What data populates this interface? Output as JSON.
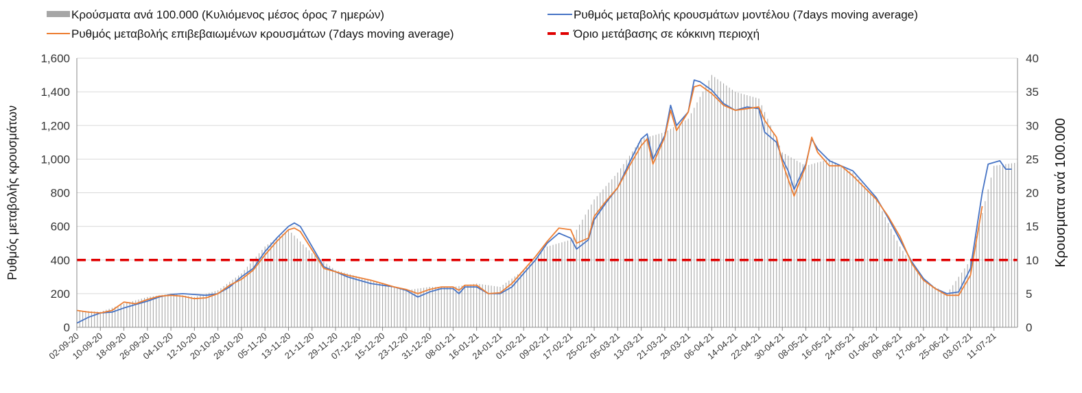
{
  "colors": {
    "bars": "#a6a6a6",
    "model": "#4472c4",
    "confirmed": "#ed7d31",
    "threshold": "#e00000",
    "grid": "#d9d9d9"
  },
  "legend": {
    "bars": "Κρούσματα ανά 100.000 (Κυλιόμενος μέσος όρος 7 ημερών)",
    "model": "Ρυθμός μεταβολής κρουσμάτων μοντέλου (7days moving average)",
    "confirmed": "Ρυθμός μεταβολής επιβεβαιωμένων κρουσμάτων (7days moving average)",
    "threshold": "Όριο μετάβασης σε κόκκινη περιοχή"
  },
  "chart_data": {
    "type": "line",
    "start_date": "02-09-20",
    "end_date": "19-07-21",
    "x_tick_labels": [
      "02-09-20",
      "10-09-20",
      "18-09-20",
      "26-09-20",
      "04-10-20",
      "12-10-20",
      "20-10-20",
      "28-10-20",
      "05-11-20",
      "13-11-20",
      "21-11-20",
      "29-11-20",
      "07-12-20",
      "15-12-20",
      "23-12-20",
      "31-12-20",
      "08-01-21",
      "16-01-21",
      "24-01-21",
      "01-02-21",
      "09-02-21",
      "17-02-21",
      "25-02-21",
      "05-03-21",
      "13-03-21",
      "21-03-21",
      "29-03-21",
      "06-04-21",
      "14-04-21",
      "22-04-21",
      "30-04-21",
      "08-05-21",
      "16-05-21",
      "24-05-21",
      "01-06-21",
      "09-06-21",
      "17-06-21",
      "25-06-21",
      "03-07-21",
      "11-07-21"
    ],
    "y_left": {
      "label": "Ρυθμός μεταβολής κρουσμάτων",
      "range": [
        0,
        1600
      ],
      "tick_labels": [
        "0",
        "200",
        "400",
        "600",
        "800",
        "1,000",
        "1,200",
        "1,400",
        "1,600"
      ]
    },
    "y_right": {
      "label": "Κρουσματα ανά 100.000",
      "range": [
        0,
        40
      ],
      "tick_labels": [
        "0",
        "5",
        "10",
        "15",
        "20",
        "25",
        "30",
        "35",
        "40"
      ]
    },
    "grid": true,
    "legend_position": "top",
    "threshold": 400,
    "series": [
      {
        "name": "Κρούσματα ανά 100.000 (Κυλιόμενος μέσος όρος 7 ημερών)",
        "kind": "bar",
        "axis": "right",
        "points": [
          [
            "02-09-20",
            2.5
          ],
          [
            "10-09-20",
            2.3
          ],
          [
            "18-09-20",
            3.5
          ],
          [
            "26-09-20",
            4.5
          ],
          [
            "04-10-20",
            5
          ],
          [
            "12-10-20",
            4.5
          ],
          [
            "20-10-20",
            5.5
          ],
          [
            "28-10-20",
            8
          ],
          [
            "05-11-20",
            12
          ],
          [
            "13-11-20",
            14.5
          ],
          [
            "21-11-20",
            11
          ],
          [
            "29-11-20",
            8.5
          ],
          [
            "07-12-20",
            7.5
          ],
          [
            "15-12-20",
            6.5
          ],
          [
            "23-12-20",
            5.5
          ],
          [
            "31-12-20",
            6
          ],
          [
            "08-01-21",
            6
          ],
          [
            "16-01-21",
            6.5
          ],
          [
            "24-01-21",
            6
          ],
          [
            "01-02-21",
            8.5
          ],
          [
            "09-02-21",
            12
          ],
          [
            "17-02-21",
            13
          ],
          [
            "25-02-21",
            19
          ],
          [
            "05-03-21",
            23
          ],
          [
            "13-03-21",
            28
          ],
          [
            "21-03-21",
            29
          ],
          [
            "29-03-21",
            31
          ],
          [
            "06-04-21",
            37.5
          ],
          [
            "14-04-21",
            35
          ],
          [
            "22-04-21",
            34
          ],
          [
            "30-04-21",
            26
          ],
          [
            "08-05-21",
            24
          ],
          [
            "16-05-21",
            25
          ],
          [
            "24-05-21",
            23
          ],
          [
            "01-06-21",
            19
          ],
          [
            "09-06-21",
            12
          ],
          [
            "17-06-21",
            7
          ],
          [
            "25-06-21",
            5
          ],
          [
            "03-07-21",
            10
          ],
          [
            "11-07-21",
            24
          ],
          [
            "19-07-21",
            24.5
          ]
        ]
      },
      {
        "name": "Ρυθμός μεταβολής κρουσμάτων μοντέλου (7days moving average)",
        "kind": "line",
        "axis": "left",
        "points": [
          [
            "02-09-20",
            25
          ],
          [
            "06-09-20",
            60
          ],
          [
            "10-09-20",
            85
          ],
          [
            "14-09-20",
            90
          ],
          [
            "18-09-20",
            115
          ],
          [
            "22-09-20",
            135
          ],
          [
            "26-09-20",
            155
          ],
          [
            "30-09-20",
            180
          ],
          [
            "04-10-20",
            195
          ],
          [
            "08-10-20",
            200
          ],
          [
            "12-10-20",
            195
          ],
          [
            "16-10-20",
            190
          ],
          [
            "20-10-20",
            200
          ],
          [
            "24-10-20",
            240
          ],
          [
            "28-10-20",
            300
          ],
          [
            "01-11-20",
            350
          ],
          [
            "05-11-20",
            450
          ],
          [
            "09-11-20",
            530
          ],
          [
            "13-11-20",
            600
          ],
          [
            "15-11-20",
            620
          ],
          [
            "17-11-20",
            600
          ],
          [
            "21-11-20",
            480
          ],
          [
            "25-11-20",
            360
          ],
          [
            "29-11-20",
            330
          ],
          [
            "03-12-20",
            300
          ],
          [
            "07-12-20",
            280
          ],
          [
            "11-12-20",
            260
          ],
          [
            "15-12-20",
            250
          ],
          [
            "19-12-20",
            240
          ],
          [
            "23-12-20",
            220
          ],
          [
            "27-12-20",
            180
          ],
          [
            "31-12-20",
            210
          ],
          [
            "04-01-21",
            230
          ],
          [
            "08-01-21",
            230
          ],
          [
            "10-01-21",
            200
          ],
          [
            "12-01-21",
            240
          ],
          [
            "16-01-21",
            240
          ],
          [
            "20-01-21",
            200
          ],
          [
            "24-01-21",
            200
          ],
          [
            "28-01-21",
            240
          ],
          [
            "01-02-21",
            320
          ],
          [
            "05-02-21",
            400
          ],
          [
            "09-02-21",
            500
          ],
          [
            "13-02-21",
            560
          ],
          [
            "17-02-21",
            530
          ],
          [
            "19-02-21",
            465
          ],
          [
            "23-02-21",
            520
          ],
          [
            "25-02-21",
            640
          ],
          [
            "01-03-21",
            740
          ],
          [
            "05-03-21",
            830
          ],
          [
            "09-03-21",
            980
          ],
          [
            "13-03-21",
            1120
          ],
          [
            "15-03-21",
            1150
          ],
          [
            "17-03-21",
            1000
          ],
          [
            "21-03-21",
            1140
          ],
          [
            "23-03-21",
            1320
          ],
          [
            "25-03-21",
            1200
          ],
          [
            "29-03-21",
            1280
          ],
          [
            "31-03-21",
            1470
          ],
          [
            "02-04-21",
            1460
          ],
          [
            "06-04-21",
            1410
          ],
          [
            "10-04-21",
            1330
          ],
          [
            "14-04-21",
            1290
          ],
          [
            "18-04-21",
            1310
          ],
          [
            "22-04-21",
            1300
          ],
          [
            "24-04-21",
            1160
          ],
          [
            "28-04-21",
            1100
          ],
          [
            "30-04-21",
            1000
          ],
          [
            "02-05-21",
            930
          ],
          [
            "04-05-21",
            820
          ],
          [
            "08-05-21",
            970
          ],
          [
            "10-05-21",
            1120
          ],
          [
            "12-05-21",
            1060
          ],
          [
            "16-05-21",
            990
          ],
          [
            "20-05-21",
            960
          ],
          [
            "24-05-21",
            930
          ],
          [
            "28-05-21",
            850
          ],
          [
            "01-06-21",
            770
          ],
          [
            "05-06-21",
            650
          ],
          [
            "09-06-21",
            520
          ],
          [
            "13-06-21",
            390
          ],
          [
            "17-06-21",
            290
          ],
          [
            "21-06-21",
            230
          ],
          [
            "25-06-21",
            200
          ],
          [
            "29-06-21",
            210
          ],
          [
            "03-07-21",
            350
          ],
          [
            "07-07-21",
            800
          ],
          [
            "09-07-21",
            970
          ],
          [
            "13-07-21",
            990
          ],
          [
            "15-07-21",
            940
          ],
          [
            "17-07-21",
            940
          ]
        ]
      },
      {
        "name": "Ρυθμός μεταβολής επιβεβαιωμένων κρουσμάτων (7days moving average)",
        "kind": "line",
        "axis": "left",
        "points": [
          [
            "02-09-20",
            100
          ],
          [
            "06-09-20",
            90
          ],
          [
            "10-09-20",
            85
          ],
          [
            "14-09-20",
            100
          ],
          [
            "18-09-20",
            150
          ],
          [
            "22-09-20",
            140
          ],
          [
            "26-09-20",
            165
          ],
          [
            "30-09-20",
            185
          ],
          [
            "04-10-20",
            190
          ],
          [
            "08-10-20",
            185
          ],
          [
            "12-10-20",
            170
          ],
          [
            "16-10-20",
            175
          ],
          [
            "20-10-20",
            200
          ],
          [
            "24-10-20",
            250
          ],
          [
            "28-10-20",
            285
          ],
          [
            "01-11-20",
            340
          ],
          [
            "05-11-20",
            430
          ],
          [
            "09-11-20",
            510
          ],
          [
            "13-11-20",
            580
          ],
          [
            "15-11-20",
            590
          ],
          [
            "17-11-20",
            570
          ],
          [
            "21-11-20",
            460
          ],
          [
            "25-11-20",
            350
          ],
          [
            "29-11-20",
            330
          ],
          [
            "03-12-20",
            310
          ],
          [
            "07-12-20",
            295
          ],
          [
            "11-12-20",
            280
          ],
          [
            "15-12-20",
            260
          ],
          [
            "19-12-20",
            240
          ],
          [
            "23-12-20",
            225
          ],
          [
            "27-12-20",
            200
          ],
          [
            "31-12-20",
            225
          ],
          [
            "04-01-21",
            240
          ],
          [
            "08-01-21",
            240
          ],
          [
            "10-01-21",
            220
          ],
          [
            "12-01-21",
            250
          ],
          [
            "16-01-21",
            250
          ],
          [
            "20-01-21",
            200
          ],
          [
            "24-01-21",
            205
          ],
          [
            "28-01-21",
            260
          ],
          [
            "01-02-21",
            340
          ],
          [
            "05-02-21",
            420
          ],
          [
            "09-02-21",
            510
          ],
          [
            "13-02-21",
            590
          ],
          [
            "17-02-21",
            580
          ],
          [
            "19-02-21",
            500
          ],
          [
            "23-02-21",
            530
          ],
          [
            "25-02-21",
            660
          ],
          [
            "01-03-21",
            750
          ],
          [
            "05-03-21",
            830
          ],
          [
            "09-03-21",
            960
          ],
          [
            "13-03-21",
            1080
          ],
          [
            "15-03-21",
            1120
          ],
          [
            "17-03-21",
            970
          ],
          [
            "21-03-21",
            1130
          ],
          [
            "23-03-21",
            1290
          ],
          [
            "25-03-21",
            1170
          ],
          [
            "29-03-21",
            1280
          ],
          [
            "31-03-21",
            1430
          ],
          [
            "02-04-21",
            1440
          ],
          [
            "06-04-21",
            1390
          ],
          [
            "10-04-21",
            1320
          ],
          [
            "14-04-21",
            1290
          ],
          [
            "18-04-21",
            1300
          ],
          [
            "22-04-21",
            1310
          ],
          [
            "24-04-21",
            1230
          ],
          [
            "28-04-21",
            1130
          ],
          [
            "30-04-21",
            980
          ],
          [
            "02-05-21",
            880
          ],
          [
            "04-05-21",
            780
          ],
          [
            "08-05-21",
            960
          ],
          [
            "10-05-21",
            1130
          ],
          [
            "12-05-21",
            1040
          ],
          [
            "16-05-21",
            960
          ],
          [
            "20-05-21",
            960
          ],
          [
            "24-05-21",
            900
          ],
          [
            "28-05-21",
            830
          ],
          [
            "01-06-21",
            760
          ],
          [
            "05-06-21",
            660
          ],
          [
            "09-06-21",
            540
          ],
          [
            "13-06-21",
            380
          ],
          [
            "17-06-21",
            280
          ],
          [
            "21-06-21",
            230
          ],
          [
            "25-06-21",
            190
          ],
          [
            "29-06-21",
            190
          ],
          [
            "03-07-21",
            310
          ],
          [
            "07-07-21",
            720
          ]
        ]
      },
      {
        "name": "Όριο μετάβασης σε κόκκινη περιοχή",
        "kind": "line",
        "axis": "left",
        "points": [
          [
            "02-09-20",
            400
          ],
          [
            "19-07-21",
            400
          ]
        ]
      }
    ]
  }
}
